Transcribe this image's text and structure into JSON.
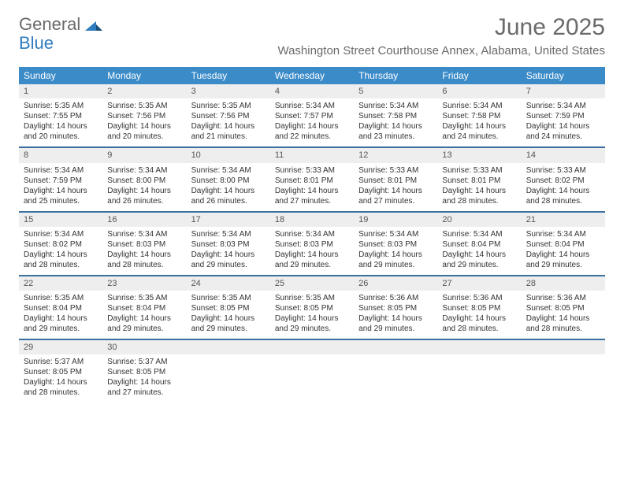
{
  "logo": {
    "word1": "General",
    "word2": "Blue"
  },
  "title": "June 2025",
  "location": "Washington Street Courthouse Annex, Alabama, United States",
  "colors": {
    "header_bg": "#3b8bc9",
    "header_text": "#ffffff",
    "daynum_bg": "#eeeeee",
    "border": "#3b6fa0",
    "title_color": "#6a6a6a",
    "logo_blue": "#2f7bbf"
  },
  "day_headers": [
    "Sunday",
    "Monday",
    "Tuesday",
    "Wednesday",
    "Thursday",
    "Friday",
    "Saturday"
  ],
  "weeks": [
    [
      {
        "n": "1",
        "sr": "Sunrise: 5:35 AM",
        "ss": "Sunset: 7:55 PM",
        "dl": "Daylight: 14 hours and 20 minutes."
      },
      {
        "n": "2",
        "sr": "Sunrise: 5:35 AM",
        "ss": "Sunset: 7:56 PM",
        "dl": "Daylight: 14 hours and 20 minutes."
      },
      {
        "n": "3",
        "sr": "Sunrise: 5:35 AM",
        "ss": "Sunset: 7:56 PM",
        "dl": "Daylight: 14 hours and 21 minutes."
      },
      {
        "n": "4",
        "sr": "Sunrise: 5:34 AM",
        "ss": "Sunset: 7:57 PM",
        "dl": "Daylight: 14 hours and 22 minutes."
      },
      {
        "n": "5",
        "sr": "Sunrise: 5:34 AM",
        "ss": "Sunset: 7:58 PM",
        "dl": "Daylight: 14 hours and 23 minutes."
      },
      {
        "n": "6",
        "sr": "Sunrise: 5:34 AM",
        "ss": "Sunset: 7:58 PM",
        "dl": "Daylight: 14 hours and 24 minutes."
      },
      {
        "n": "7",
        "sr": "Sunrise: 5:34 AM",
        "ss": "Sunset: 7:59 PM",
        "dl": "Daylight: 14 hours and 24 minutes."
      }
    ],
    [
      {
        "n": "8",
        "sr": "Sunrise: 5:34 AM",
        "ss": "Sunset: 7:59 PM",
        "dl": "Daylight: 14 hours and 25 minutes."
      },
      {
        "n": "9",
        "sr": "Sunrise: 5:34 AM",
        "ss": "Sunset: 8:00 PM",
        "dl": "Daylight: 14 hours and 26 minutes."
      },
      {
        "n": "10",
        "sr": "Sunrise: 5:34 AM",
        "ss": "Sunset: 8:00 PM",
        "dl": "Daylight: 14 hours and 26 minutes."
      },
      {
        "n": "11",
        "sr": "Sunrise: 5:33 AM",
        "ss": "Sunset: 8:01 PM",
        "dl": "Daylight: 14 hours and 27 minutes."
      },
      {
        "n": "12",
        "sr": "Sunrise: 5:33 AM",
        "ss": "Sunset: 8:01 PM",
        "dl": "Daylight: 14 hours and 27 minutes."
      },
      {
        "n": "13",
        "sr": "Sunrise: 5:33 AM",
        "ss": "Sunset: 8:01 PM",
        "dl": "Daylight: 14 hours and 28 minutes."
      },
      {
        "n": "14",
        "sr": "Sunrise: 5:33 AM",
        "ss": "Sunset: 8:02 PM",
        "dl": "Daylight: 14 hours and 28 minutes."
      }
    ],
    [
      {
        "n": "15",
        "sr": "Sunrise: 5:34 AM",
        "ss": "Sunset: 8:02 PM",
        "dl": "Daylight: 14 hours and 28 minutes."
      },
      {
        "n": "16",
        "sr": "Sunrise: 5:34 AM",
        "ss": "Sunset: 8:03 PM",
        "dl": "Daylight: 14 hours and 28 minutes."
      },
      {
        "n": "17",
        "sr": "Sunrise: 5:34 AM",
        "ss": "Sunset: 8:03 PM",
        "dl": "Daylight: 14 hours and 29 minutes."
      },
      {
        "n": "18",
        "sr": "Sunrise: 5:34 AM",
        "ss": "Sunset: 8:03 PM",
        "dl": "Daylight: 14 hours and 29 minutes."
      },
      {
        "n": "19",
        "sr": "Sunrise: 5:34 AM",
        "ss": "Sunset: 8:03 PM",
        "dl": "Daylight: 14 hours and 29 minutes."
      },
      {
        "n": "20",
        "sr": "Sunrise: 5:34 AM",
        "ss": "Sunset: 8:04 PM",
        "dl": "Daylight: 14 hours and 29 minutes."
      },
      {
        "n": "21",
        "sr": "Sunrise: 5:34 AM",
        "ss": "Sunset: 8:04 PM",
        "dl": "Daylight: 14 hours and 29 minutes."
      }
    ],
    [
      {
        "n": "22",
        "sr": "Sunrise: 5:35 AM",
        "ss": "Sunset: 8:04 PM",
        "dl": "Daylight: 14 hours and 29 minutes."
      },
      {
        "n": "23",
        "sr": "Sunrise: 5:35 AM",
        "ss": "Sunset: 8:04 PM",
        "dl": "Daylight: 14 hours and 29 minutes."
      },
      {
        "n": "24",
        "sr": "Sunrise: 5:35 AM",
        "ss": "Sunset: 8:05 PM",
        "dl": "Daylight: 14 hours and 29 minutes."
      },
      {
        "n": "25",
        "sr": "Sunrise: 5:35 AM",
        "ss": "Sunset: 8:05 PM",
        "dl": "Daylight: 14 hours and 29 minutes."
      },
      {
        "n": "26",
        "sr": "Sunrise: 5:36 AM",
        "ss": "Sunset: 8:05 PM",
        "dl": "Daylight: 14 hours and 29 minutes."
      },
      {
        "n": "27",
        "sr": "Sunrise: 5:36 AM",
        "ss": "Sunset: 8:05 PM",
        "dl": "Daylight: 14 hours and 28 minutes."
      },
      {
        "n": "28",
        "sr": "Sunrise: 5:36 AM",
        "ss": "Sunset: 8:05 PM",
        "dl": "Daylight: 14 hours and 28 minutes."
      }
    ],
    [
      {
        "n": "29",
        "sr": "Sunrise: 5:37 AM",
        "ss": "Sunset: 8:05 PM",
        "dl": "Daylight: 14 hours and 28 minutes."
      },
      {
        "n": "30",
        "sr": "Sunrise: 5:37 AM",
        "ss": "Sunset: 8:05 PM",
        "dl": "Daylight: 14 hours and 27 minutes."
      },
      null,
      null,
      null,
      null,
      null
    ]
  ]
}
